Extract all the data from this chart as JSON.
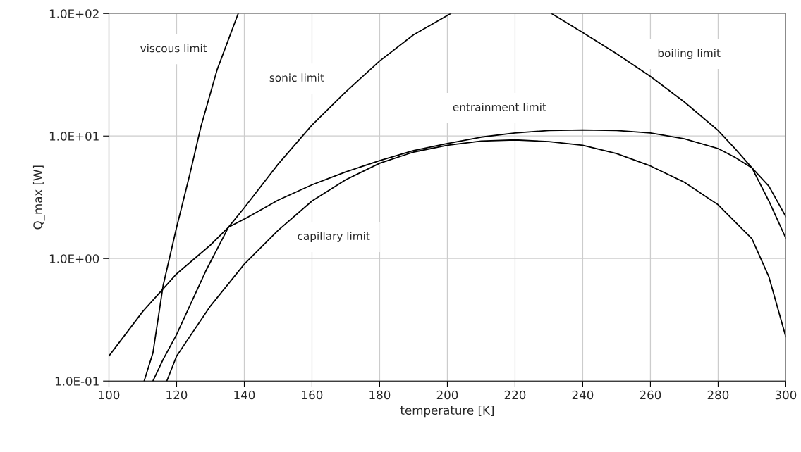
{
  "chart_data": {
    "type": "line",
    "xlabel": "temperature [K]",
    "ylabel": "Q_max [W]",
    "log": "y",
    "grid": true,
    "marker": "none",
    "line_style": "solid",
    "xlim": [
      100,
      300
    ],
    "xticks": [
      100,
      120,
      140,
      160,
      180,
      200,
      220,
      240,
      260,
      280,
      300
    ],
    "ylim": [
      0.1,
      100
    ],
    "yticks": [
      {
        "value": 0.1,
        "label": "1.0E-01"
      },
      {
        "value": 1,
        "label": "1.0E+00"
      },
      {
        "value": 10,
        "label": "1.0E+01"
      },
      {
        "value": 100,
        "label": "1.0E+02"
      }
    ],
    "series": [
      {
        "name": "viscous limit",
        "color": "#000000",
        "x": [
          110.4,
          113,
          116,
          120,
          124,
          127.2,
          132,
          138.2
        ],
        "values": [
          0.1,
          0.17,
          0.6,
          1.8,
          5.0,
          12,
          35,
          100
        ]
      },
      {
        "name": "sonic limit",
        "color": "#000000",
        "x": [
          113,
          116,
          120,
          128.6,
          135.3,
          140,
          150,
          160,
          170,
          180,
          190,
          201
        ],
        "values": [
          0.1,
          0.15,
          0.24,
          0.79,
          1.8,
          2.6,
          5.9,
          12.3,
          23,
          41,
          67,
          100
        ]
      },
      {
        "name": "capillary limit",
        "color": "#000000",
        "x": [
          117.1,
          120,
          130,
          140,
          150,
          160,
          170,
          180,
          190,
          200,
          210,
          220,
          230,
          240,
          250,
          260,
          270,
          280,
          290,
          295,
          300
        ],
        "values": [
          0.1,
          0.16,
          0.41,
          0.9,
          1.7,
          2.95,
          4.4,
          6.0,
          7.4,
          8.4,
          9.1,
          9.3,
          9.0,
          8.4,
          7.2,
          5.7,
          4.2,
          2.75,
          1.45,
          0.71,
          0.23
        ]
      },
      {
        "name": "entrainment limit",
        "color": "#000000",
        "x": [
          100,
          110,
          120,
          130,
          135.3,
          140,
          150,
          160,
          170,
          180,
          190,
          200,
          210,
          220,
          230,
          240,
          250,
          260,
          270,
          280,
          285,
          290,
          295,
          300
        ],
        "values": [
          0.16,
          0.37,
          0.75,
          1.29,
          1.8,
          2.1,
          3.0,
          4.0,
          5.1,
          6.3,
          7.6,
          8.7,
          9.8,
          10.6,
          11.1,
          11.2,
          11.1,
          10.6,
          9.5,
          7.9,
          6.7,
          5.5,
          3.9,
          2.2
        ]
      },
      {
        "name": "boiling limit",
        "color": "#000000",
        "x": [
          230.8,
          240,
          250,
          260,
          270,
          280,
          285,
          290,
          295,
          300
        ],
        "values": [
          100,
          70,
          47,
          30.7,
          19,
          11.1,
          7.9,
          5.5,
          2.95,
          1.47
        ]
      }
    ]
  }
}
